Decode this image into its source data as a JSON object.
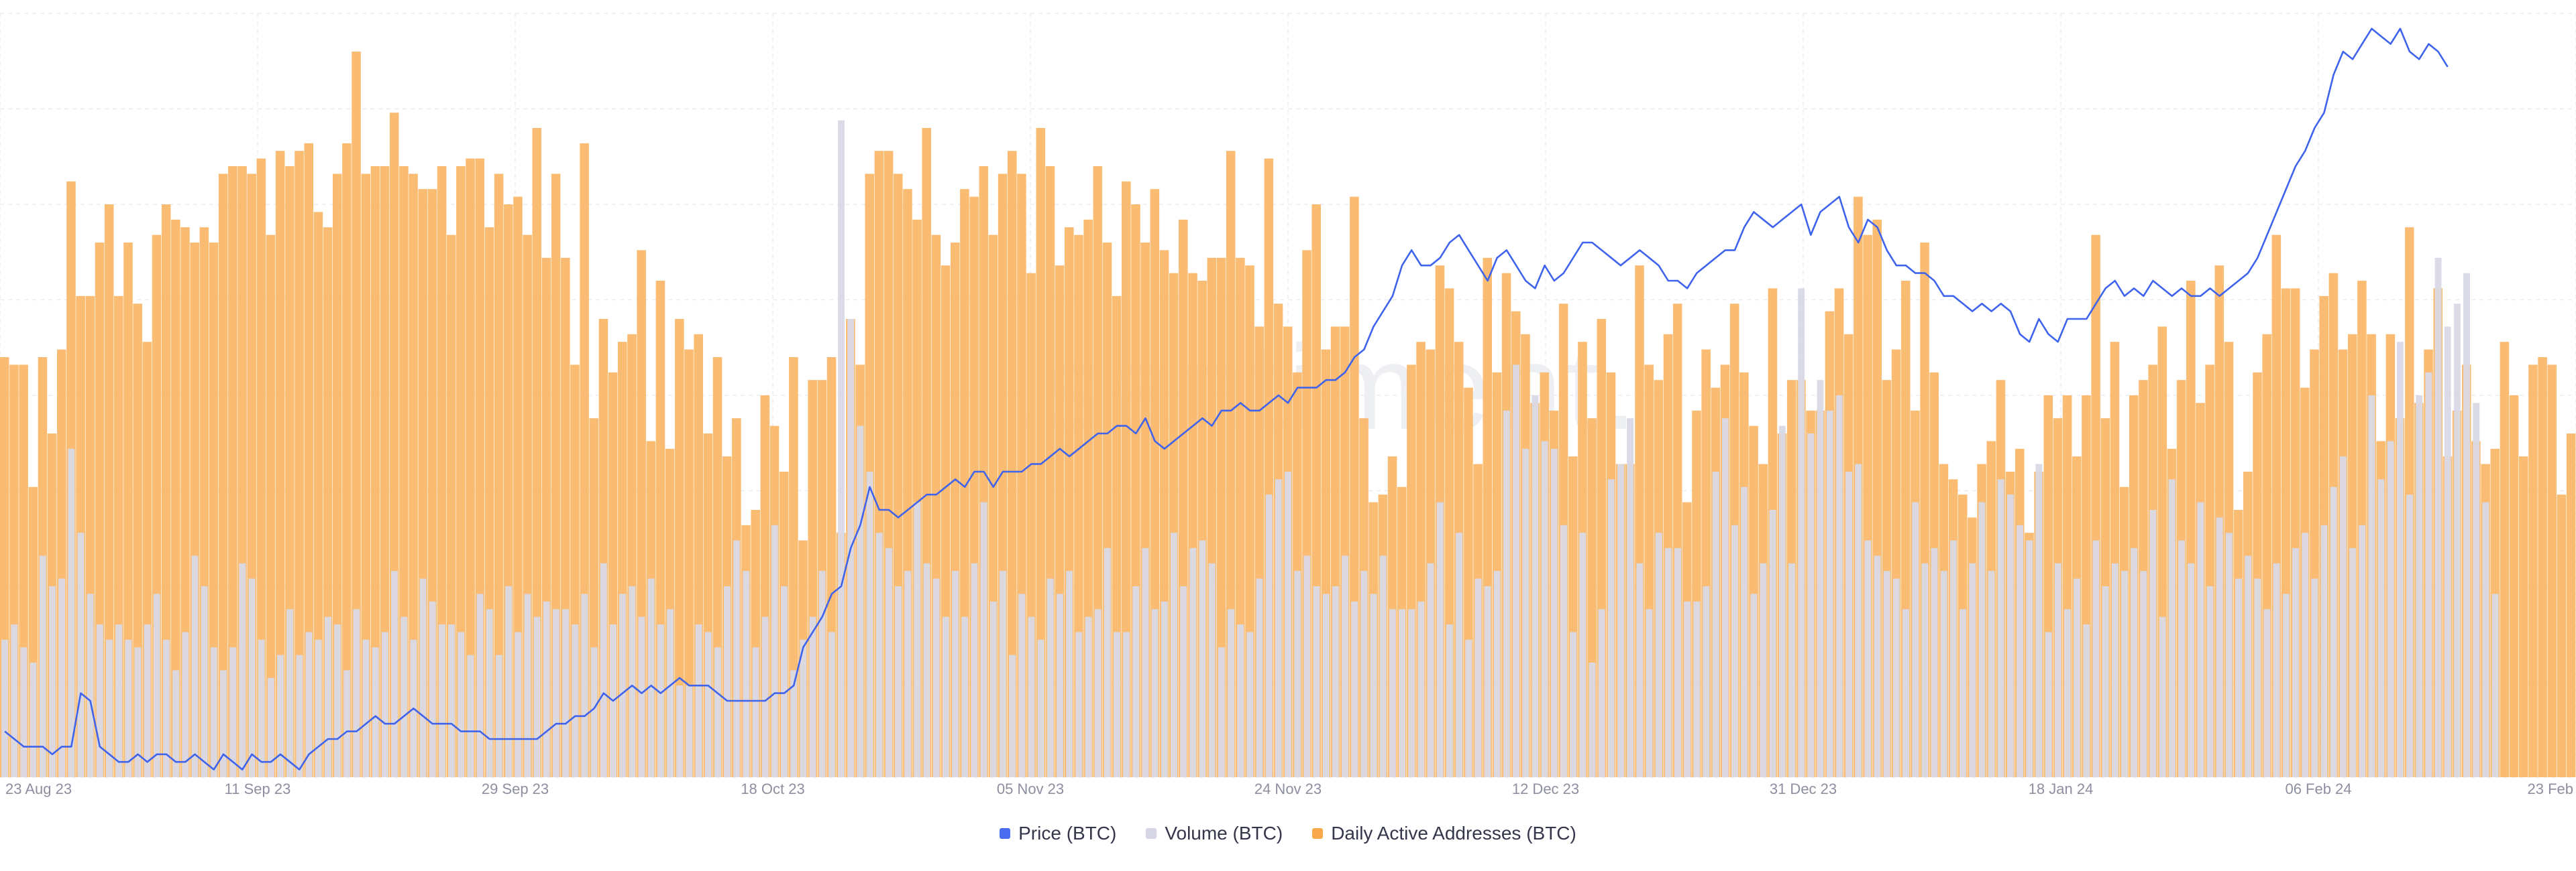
{
  "chart_data": {
    "type": "bar",
    "watermark": ".santiment.",
    "x_tick_labels": [
      "23 Aug 23",
      "11 Sep 23",
      "29 Sep 23",
      "18 Oct 23",
      "05 Nov 23",
      "24 Nov 23",
      "12 Dec 23",
      "31 Dec 23",
      "18 Jan 24",
      "06 Feb 24",
      "23 Feb"
    ],
    "legend": [
      {
        "name": "Price (BTC)",
        "color": "#4a6cf0"
      },
      {
        "name": "Volume (BTC)",
        "color": "#d6d6e4"
      },
      {
        "name": "Daily Active Addresses (BTC)",
        "color": "#f9a94b"
      }
    ],
    "series_daa_index": [
      55,
      54,
      54,
      38,
      55,
      45,
      56,
      78,
      63,
      63,
      70,
      75,
      63,
      70,
      62,
      57,
      71,
      75,
      73,
      72,
      70,
      72,
      70,
      79,
      80,
      80,
      79,
      81,
      71,
      82,
      80,
      82,
      83,
      74,
      72,
      79,
      83,
      95,
      79,
      80,
      80,
      87,
      80,
      79,
      77,
      77,
      80,
      71,
      80,
      81,
      81,
      72,
      79,
      75,
      76,
      71,
      85,
      68,
      79,
      68,
      54,
      83,
      47,
      60,
      53,
      57,
      58,
      69,
      44,
      65,
      43,
      60,
      56,
      58,
      45,
      55,
      42,
      47,
      33,
      35,
      50,
      46,
      40,
      55,
      31,
      52,
      52,
      55,
      32,
      60,
      54,
      79,
      82,
      82,
      79,
      77,
      73,
      85,
      71,
      67,
      70,
      77,
      76,
      80,
      71,
      79,
      82,
      79,
      66,
      85,
      80,
      67,
      72,
      71,
      73,
      80,
      70,
      63,
      78,
      75,
      70,
      77,
      69,
      66,
      73,
      66,
      65,
      68,
      68,
      82,
      68,
      67,
      59,
      81,
      62,
      59,
      53,
      69,
      75,
      56,
      59,
      59,
      76,
      47,
      36,
      37,
      42,
      38,
      54,
      57,
      56,
      67,
      64,
      57,
      51,
      41,
      68,
      53,
      66,
      61,
      58,
      49,
      53,
      48,
      62,
      42,
      57,
      47,
      60,
      53,
      41,
      41,
      67,
      54,
      52,
      58,
      62,
      36,
      48,
      56,
      51,
      54,
      62,
      53,
      46,
      41,
      64,
      45,
      52,
      52,
      48,
      48,
      61,
      64,
      58,
      76,
      71,
      73,
      52,
      56,
      65,
      48,
      70,
      53,
      41,
      39,
      37,
      34,
      41,
      44,
      52,
      40,
      43,
      32,
      40,
      50,
      47,
      50,
      42,
      50,
      71,
      47,
      57,
      38,
      50,
      52,
      54,
      59,
      43,
      52,
      65,
      49,
      54,
      67,
      57,
      35,
      40,
      53,
      58,
      71,
      64,
      64,
      51,
      56,
      63,
      66,
      56,
      58,
      65,
      58,
      44,
      58,
      47,
      72,
      49,
      56,
      64,
      42,
      48,
      54,
      44,
      41,
      43,
      57,
      50,
      42,
      54,
      55,
      54,
      37,
      45
    ],
    "series_volume_index": [
      18,
      20,
      17,
      15,
      29,
      25,
      26,
      43,
      32,
      24,
      20,
      18,
      20,
      18,
      17,
      20,
      24,
      18,
      14,
      19,
      29,
      25,
      17,
      14,
      17,
      28,
      26,
      18,
      13,
      16,
      22,
      16,
      19,
      18,
      21,
      20,
      14,
      22,
      18,
      17,
      19,
      27,
      21,
      18,
      26,
      23,
      20,
      20,
      19,
      16,
      24,
      22,
      16,
      25,
      19,
      24,
      21,
      23,
      22,
      22,
      20,
      24,
      17,
      28,
      20,
      24,
      25,
      21,
      26,
      20,
      22,
      12,
      12,
      20,
      19,
      17,
      25,
      31,
      27,
      17,
      21,
      33,
      25,
      14,
      18,
      21,
      27,
      19,
      86,
      60,
      46,
      40,
      32,
      30,
      25,
      27,
      36,
      28,
      26,
      21,
      27,
      21,
      28,
      36,
      23,
      27,
      16,
      24,
      21,
      18,
      26,
      24,
      27,
      19,
      21,
      22,
      30,
      19,
      19,
      25,
      30,
      22,
      23,
      32,
      25,
      30,
      31,
      28,
      17,
      22,
      20,
      19,
      26,
      37,
      39,
      40,
      27,
      29,
      25,
      24,
      25,
      29,
      23,
      27,
      24,
      29,
      22,
      22,
      22,
      23,
      28,
      36,
      20,
      32,
      18,
      26,
      25,
      27,
      48,
      54,
      43,
      50,
      44,
      43,
      33,
      19,
      32,
      15,
      22,
      39,
      41,
      47,
      28,
      22,
      32,
      30,
      30,
      23,
      23,
      25,
      40,
      47,
      33,
      38,
      24,
      28,
      35,
      46,
      28,
      64,
      45,
      52,
      48,
      50,
      40,
      41,
      31,
      29,
      27,
      26,
      22,
      36,
      28,
      30,
      27,
      31,
      22,
      28,
      36,
      27,
      39,
      37,
      33,
      31,
      41,
      19,
      28,
      22,
      26,
      20,
      31,
      25,
      28,
      27,
      30,
      27,
      35,
      21,
      39,
      31,
      28,
      36,
      25,
      34,
      32,
      26,
      29,
      26,
      22,
      28,
      24,
      30,
      32,
      26,
      33,
      38,
      42,
      30,
      33,
      50,
      39,
      44,
      57,
      37,
      50,
      53,
      68,
      59,
      62,
      66,
      49,
      36,
      24
    ],
    "series_price_index": [
      6,
      5,
      4,
      4,
      4,
      3,
      4,
      4,
      11,
      10,
      4,
      3,
      2,
      2,
      3,
      2,
      3,
      3,
      2,
      2,
      3,
      2,
      1,
      3,
      2,
      1,
      3,
      2,
      2,
      3,
      2,
      1,
      3,
      4,
      5,
      5,
      6,
      6,
      7,
      8,
      7,
      7,
      8,
      9,
      8,
      7,
      7,
      7,
      6,
      6,
      6,
      5,
      5,
      5,
      5,
      5,
      5,
      6,
      7,
      7,
      8,
      8,
      9,
      11,
      10,
      11,
      12,
      11,
      12,
      11,
      12,
      13,
      12,
      12,
      12,
      11,
      10,
      10,
      10,
      10,
      10,
      11,
      11,
      12,
      17,
      19,
      21,
      24,
      25,
      30,
      33,
      38,
      35,
      35,
      34,
      35,
      36,
      37,
      37,
      38,
      39,
      38,
      40,
      40,
      38,
      40,
      40,
      40,
      41,
      41,
      42,
      43,
      42,
      43,
      44,
      45,
      45,
      46,
      46,
      45,
      47,
      44,
      43,
      44,
      45,
      46,
      47,
      46,
      48,
      48,
      49,
      48,
      48,
      49,
      50,
      49,
      51,
      51,
      51,
      52,
      52,
      53,
      55,
      56,
      59,
      61,
      63,
      67,
      69,
      67,
      67,
      68,
      70,
      71,
      69,
      67,
      65,
      68,
      69,
      67,
      65,
      64,
      67,
      65,
      66,
      68,
      70,
      70,
      69,
      68,
      67,
      68,
      69,
      68,
      67,
      65,
      65,
      64,
      66,
      67,
      68,
      69,
      69,
      72,
      74,
      73,
      72,
      73,
      74,
      75,
      71,
      74,
      75,
      76,
      72,
      70,
      73,
      72,
      69,
      67,
      67,
      66,
      66,
      65,
      63,
      63,
      62,
      61,
      62,
      61,
      62,
      61,
      58,
      57,
      60,
      58,
      57,
      60,
      60,
      60,
      62,
      64,
      65,
      63,
      64,
      63,
      65,
      64,
      63,
      64,
      63,
      63,
      64,
      63,
      64,
      65,
      66,
      68,
      71,
      74,
      77,
      80,
      82,
      85,
      87,
      92,
      95,
      94,
      96,
      98,
      97,
      96,
      98,
      95,
      94,
      96,
      95,
      93
    ],
    "y_axis": "normalized, no tick labels shown"
  }
}
